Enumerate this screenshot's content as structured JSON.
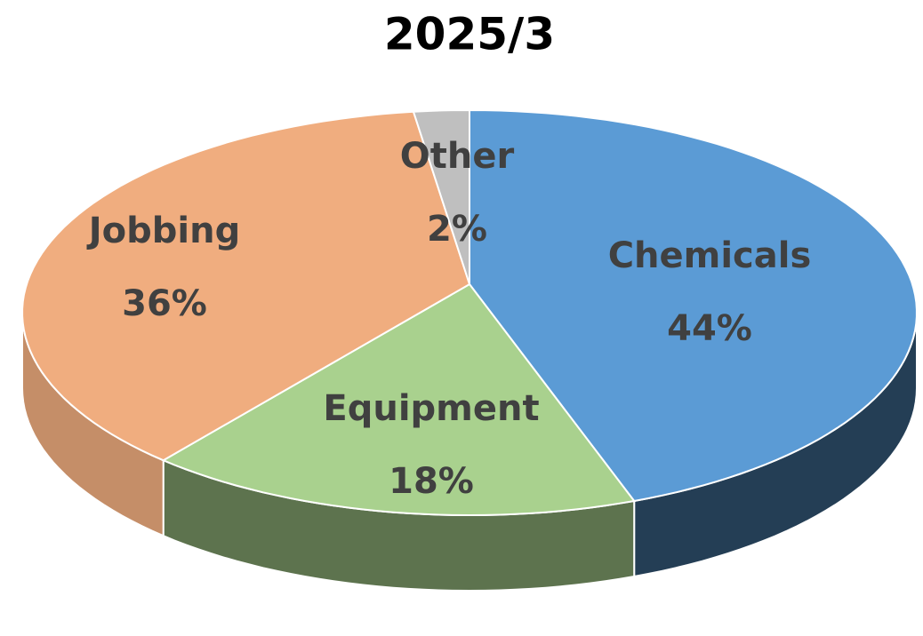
{
  "chart_data": {
    "type": "pie",
    "title": "2025/3",
    "categories": [
      "Chemicals",
      "Equipment",
      "Jobbing",
      "Other"
    ],
    "values": [
      44,
      18,
      36,
      2
    ],
    "value_labels": [
      "44%",
      "18%",
      "36%",
      "2%"
    ],
    "colors": [
      "#5b9bd5",
      "#a9d18e",
      "#f0ad7f",
      "#bfbfbf"
    ]
  }
}
